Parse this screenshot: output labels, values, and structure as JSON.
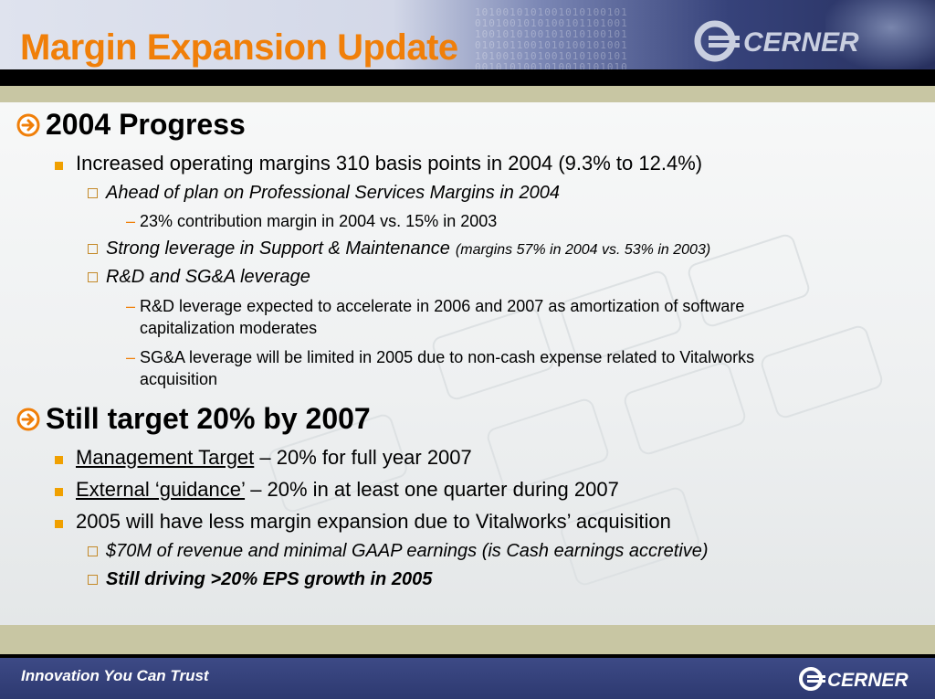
{
  "header": {
    "title": "Margin Expansion Update",
    "logo_text": "CERNER"
  },
  "sections": [
    {
      "heading": "2004 Progress",
      "items": [
        {
          "text": "Increased operating margins 310 basis points in 2004 (9.3% to 12.4%)"
        },
        {
          "text": "Ahead of plan on Professional Services Margins in 2004"
        },
        {
          "text": "23% contribution margin in 2004 vs. 15% in 2003"
        },
        {
          "text": "Strong leverage in Support & Maintenance",
          "note": "(margins 57% in 2004 vs. 53% in 2003)"
        },
        {
          "text": "R&D and SG&A leverage"
        },
        {
          "text": "R&D leverage expected to accelerate in 2006 and 2007 as amortization of software capitalization moderates"
        },
        {
          "text": "SG&A leverage will be limited in 2005 due to non-cash expense related to Vitalworks acquisition"
        }
      ]
    },
    {
      "heading": "Still target 20% by 2007",
      "items": [
        {
          "label": "Management Target",
          "text": " – 20% for full year 2007"
        },
        {
          "label": "External ‘guidance’",
          "text": " – 20% in at least one quarter during 2007"
        },
        {
          "text": "2005 will have less margin expansion due to Vitalworks’ acquisition"
        },
        {
          "text": "$70M of revenue and minimal GAAP earnings (is Cash earnings accretive)"
        },
        {
          "text": "Still driving >20% EPS growth in 2005"
        }
      ]
    }
  ],
  "footer": {
    "tagline": "Innovation You Can Trust",
    "logo_text": "CERNER"
  },
  "colors": {
    "title": "#f07f09",
    "navy": "#2d3970",
    "olive": "#c8c6a3",
    "bullet": "#f0a000"
  }
}
